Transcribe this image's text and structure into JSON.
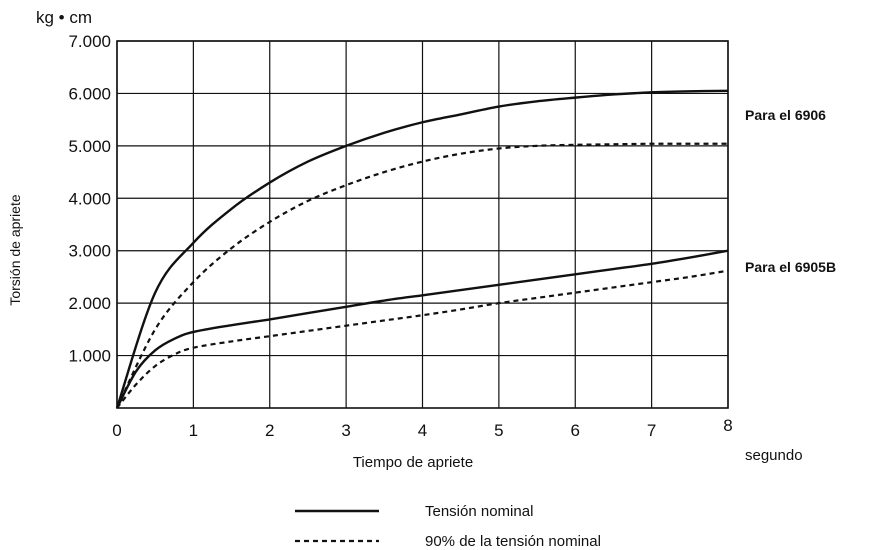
{
  "chart_data": {
    "type": "line",
    "ylabel": "Torsión de apriete",
    "yunit": "kg • cm",
    "xlabel": "Tiempo de apriete",
    "xunit": "segundo",
    "xlim": [
      0,
      8
    ],
    "ylim": [
      0,
      7000
    ],
    "xticks": [
      "0",
      "1",
      "2",
      "3",
      "4",
      "5",
      "6",
      "7",
      "8"
    ],
    "yticks": [
      {
        "value": 1000,
        "label": "1.000"
      },
      {
        "value": 2000,
        "label": "2.000"
      },
      {
        "value": 3000,
        "label": "3.000"
      },
      {
        "value": 4000,
        "label": "4.000"
      },
      {
        "value": 5000,
        "label": "5.000"
      },
      {
        "value": 6000,
        "label": "6.000"
      },
      {
        "value": 7000,
        "label": "7.000"
      }
    ],
    "grid": true,
    "groups": [
      {
        "label": "Para el 6906",
        "anchor_y": 6000
      },
      {
        "label": "Para el 6905B",
        "anchor_y": 3000
      }
    ],
    "series": [
      {
        "group": "Para el 6906",
        "style": "solid",
        "x": [
          0,
          0.5,
          1,
          1.5,
          2,
          2.5,
          3,
          3.5,
          4,
          4.5,
          5,
          5.5,
          6,
          6.5,
          7,
          7.5,
          8
        ],
        "y": [
          0,
          2200,
          3150,
          3800,
          4300,
          4700,
          5000,
          5250,
          5450,
          5600,
          5750,
          5850,
          5920,
          5980,
          6020,
          6040,
          6050
        ]
      },
      {
        "group": "Para el 6906",
        "style": "dashed",
        "x": [
          0,
          0.5,
          1,
          1.5,
          2,
          2.5,
          3,
          3.5,
          4,
          4.5,
          5,
          5.5,
          6,
          6.5,
          7,
          7.5,
          8
        ],
        "y": [
          0,
          1500,
          2400,
          3050,
          3550,
          3950,
          4250,
          4500,
          4700,
          4850,
          4950,
          5000,
          5020,
          5030,
          5040,
          5040,
          5040
        ]
      },
      {
        "group": "Para el 6905B",
        "style": "solid",
        "x": [
          0,
          0.25,
          0.5,
          0.75,
          1,
          1.5,
          2,
          2.5,
          3,
          3.5,
          4,
          4.5,
          5,
          5.5,
          6,
          6.5,
          7,
          7.5,
          8
        ],
        "y": [
          0,
          700,
          1100,
          1320,
          1450,
          1580,
          1690,
          1810,
          1930,
          2050,
          2150,
          2250,
          2350,
          2450,
          2550,
          2650,
          2750,
          2870,
          3000
        ]
      },
      {
        "group": "Para el 6905B",
        "style": "dashed",
        "x": [
          0,
          0.25,
          0.5,
          0.75,
          1,
          1.5,
          2,
          2.5,
          3,
          3.5,
          4,
          4.5,
          5,
          5.5,
          6,
          6.5,
          7,
          7.5,
          8
        ],
        "y": [
          0,
          450,
          800,
          1020,
          1150,
          1270,
          1370,
          1470,
          1570,
          1670,
          1770,
          1880,
          2000,
          2100,
          2200,
          2300,
          2400,
          2500,
          2620
        ]
      }
    ],
    "legend": [
      {
        "style": "solid",
        "label": "Tensión nominal"
      },
      {
        "style": "dashed",
        "label": "90% de la tensión nominal"
      }
    ]
  }
}
